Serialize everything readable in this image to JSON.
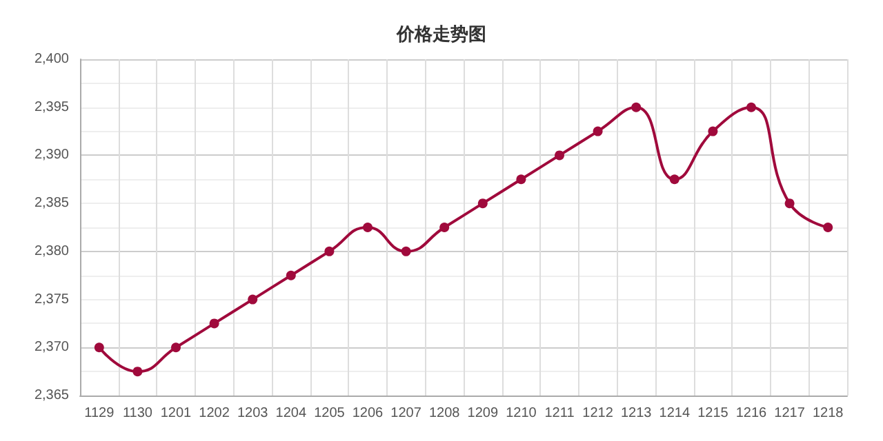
{
  "chart_data": {
    "type": "line",
    "title": "价格走势图",
    "categories": [
      "1129",
      "1130",
      "1201",
      "1202",
      "1203",
      "1204",
      "1205",
      "1206",
      "1207",
      "1208",
      "1209",
      "1210",
      "1211",
      "1212",
      "1213",
      "1214",
      "1215",
      "1216",
      "1217",
      "1218"
    ],
    "series": [
      {
        "color": "#a00a3c",
        "values": [
          2370,
          2367.5,
          2370,
          2372.5,
          2375,
          2377.5,
          2380,
          2382.5,
          2380,
          2382.5,
          2385,
          2387.5,
          2390,
          2392.5,
          2395,
          2387.5,
          2392.5,
          2395,
          2385,
          2382.5
        ]
      }
    ],
    "ylim": [
      2365,
      2400
    ],
    "yticks": [
      {
        "value": 2365,
        "label": "2,365"
      },
      {
        "value": 2370,
        "label": "2,370"
      },
      {
        "value": 2375,
        "label": "2,375"
      },
      {
        "value": 2380,
        "label": "2,380"
      },
      {
        "value": 2385,
        "label": "2,385"
      },
      {
        "value": 2390,
        "label": "2,390"
      },
      {
        "value": 2395,
        "label": "2,395"
      },
      {
        "value": 2400,
        "label": "2,400"
      }
    ],
    "grid": true,
    "marker": "circle"
  }
}
